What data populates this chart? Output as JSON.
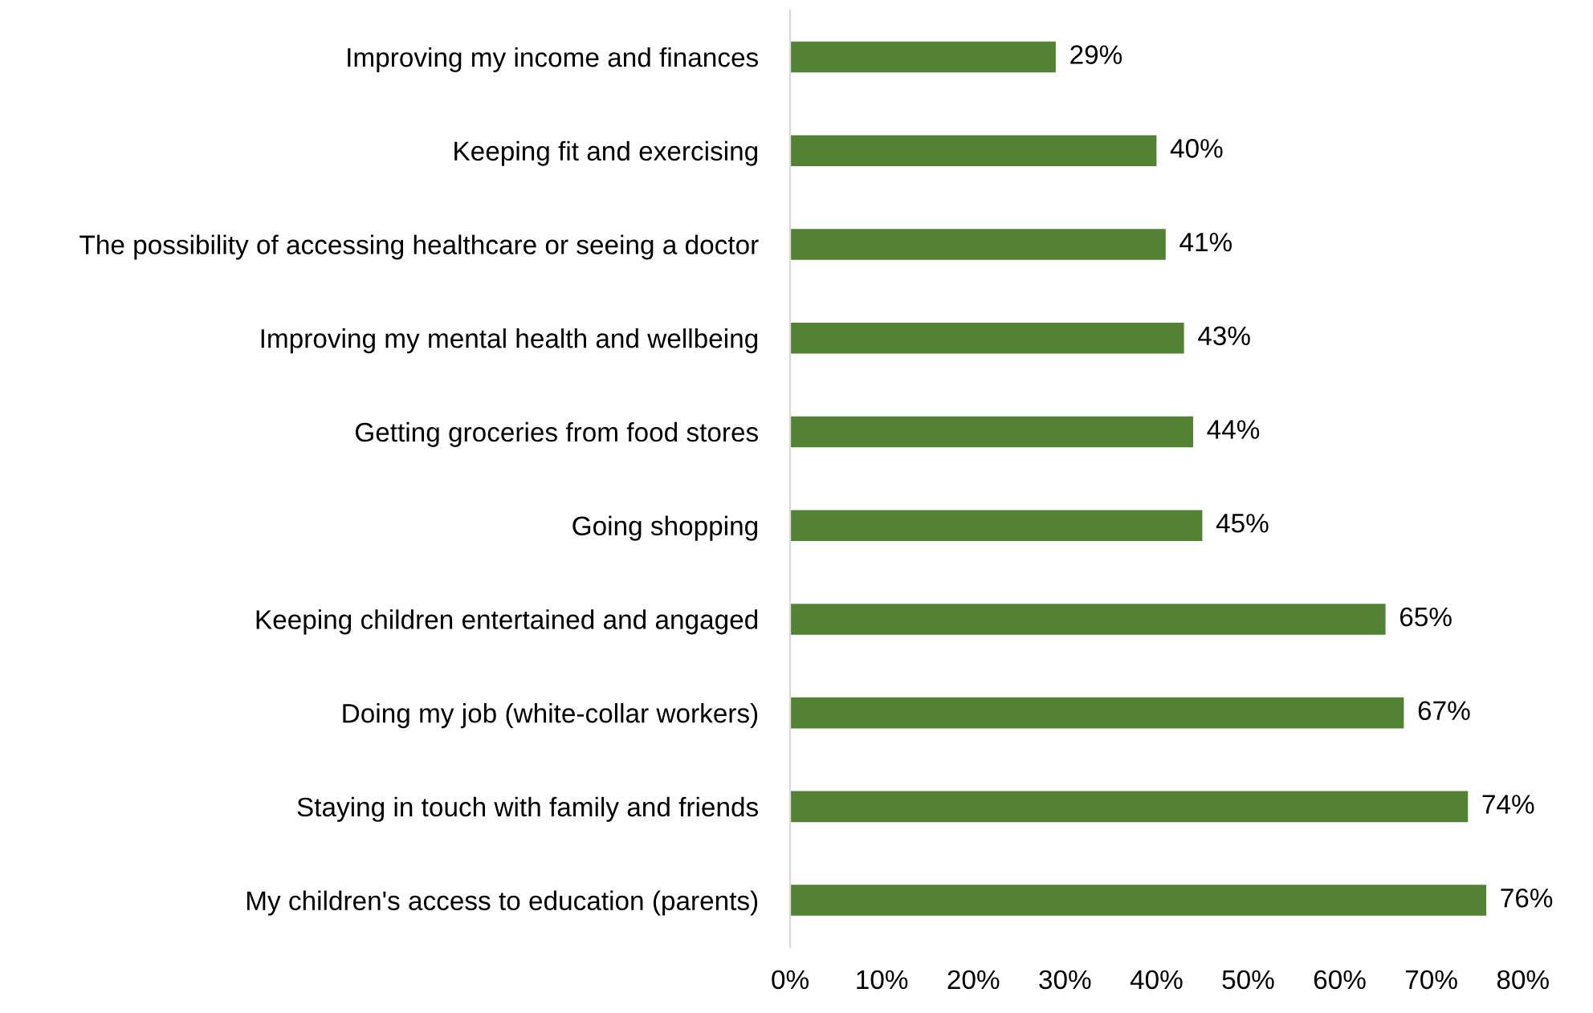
{
  "chart_data": {
    "type": "bar",
    "orientation": "horizontal",
    "categories": [
      "Improving my income and finances",
      "Keeping fit and exercising",
      "The possibility of accessing healthcare or seeing a doctor",
      "Improving my mental health and wellbeing",
      "Getting groceries from food stores",
      "Going shopping",
      "Keeping children entertained and angaged",
      "Doing my job (white-collar workers)",
      "Staying in touch with family and friends",
      "My children's access to education (parents)"
    ],
    "values": [
      29,
      40,
      41,
      43,
      44,
      45,
      65,
      67,
      74,
      76
    ],
    "value_labels": [
      "29%",
      "40%",
      "41%",
      "43%",
      "44%",
      "45%",
      "65%",
      "67%",
      "74%",
      "76%"
    ],
    "color": "#548235",
    "xlim": [
      0,
      80
    ],
    "xticks": [
      {
        "value": 0,
        "label": "0%"
      },
      {
        "value": 10,
        "label": "10%"
      },
      {
        "value": 20,
        "label": "20%"
      },
      {
        "value": 30,
        "label": "30%"
      },
      {
        "value": 40,
        "label": "40%"
      },
      {
        "value": 50,
        "label": "50%"
      },
      {
        "value": 60,
        "label": "60%"
      },
      {
        "value": 70,
        "label": "70%"
      },
      {
        "value": 80,
        "label": "80%"
      }
    ],
    "grid": false,
    "legend": false
  }
}
